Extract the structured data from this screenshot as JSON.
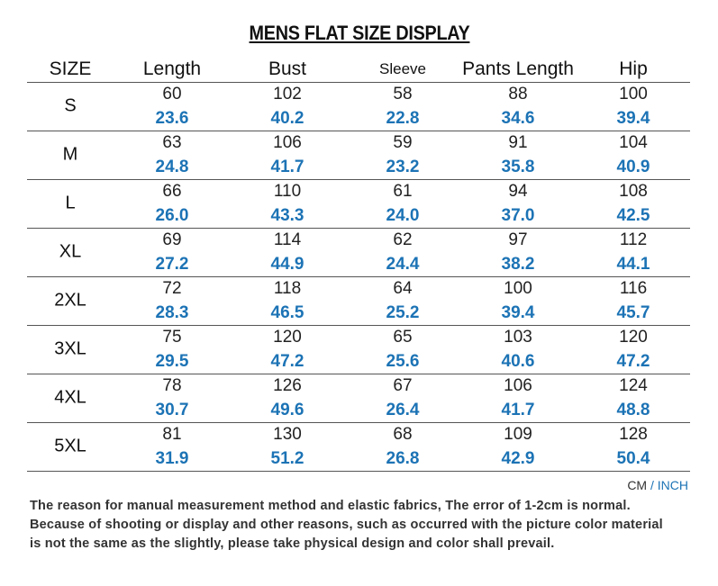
{
  "header": {
    "title": "MENS FLAT SIZE DISPLAY"
  },
  "table": {
    "columns": [
      "SIZE",
      "Length",
      "Bust",
      "Sleeve",
      "Pants Length",
      "Hip"
    ],
    "rows": [
      {
        "size": "S",
        "cm": [
          "60",
          "102",
          "58",
          "88",
          "100"
        ],
        "inch": [
          "23.6",
          "40.2",
          "22.8",
          "34.6",
          "39.4"
        ]
      },
      {
        "size": "M",
        "cm": [
          "63",
          "106",
          "59",
          "91",
          "104"
        ],
        "inch": [
          "24.8",
          "41.7",
          "23.2",
          "35.8",
          "40.9"
        ]
      },
      {
        "size": "L",
        "cm": [
          "66",
          "110",
          "61",
          "94",
          "108"
        ],
        "inch": [
          "26.0",
          "43.3",
          "24.0",
          "37.0",
          "42.5"
        ]
      },
      {
        "size": "XL",
        "cm": [
          "69",
          "114",
          "62",
          "97",
          "112"
        ],
        "inch": [
          "27.2",
          "44.9",
          "24.4",
          "38.2",
          "44.1"
        ]
      },
      {
        "size": "2XL",
        "cm": [
          "72",
          "118",
          "64",
          "100",
          "116"
        ],
        "inch": [
          "28.3",
          "46.5",
          "25.2",
          "39.4",
          "45.7"
        ]
      },
      {
        "size": "3XL",
        "cm": [
          "75",
          "120",
          "65",
          "103",
          "120"
        ],
        "inch": [
          "29.5",
          "47.2",
          "25.6",
          "40.6",
          "47.2"
        ]
      },
      {
        "size": "4XL",
        "cm": [
          "78",
          "126",
          "67",
          "106",
          "124"
        ],
        "inch": [
          "30.7",
          "49.6",
          "26.4",
          "41.7",
          "48.8"
        ]
      },
      {
        "size": "5XL",
        "cm": [
          "81",
          "130",
          "68",
          "109",
          "128"
        ],
        "inch": [
          "31.9",
          "51.2",
          "26.8",
          "42.9",
          "50.4"
        ]
      }
    ]
  },
  "units": {
    "cm": "CM",
    "separator": "/",
    "inch": "INCH"
  },
  "notes": [
    "The reason for manual measurement method and elastic fabrics, The error of 1-2cm is normal.",
    "Because of shooting or display and other reasons, such as occurred with the picture color material",
    "is not the same as the slightly, please take physical design and color shall prevail."
  ]
}
